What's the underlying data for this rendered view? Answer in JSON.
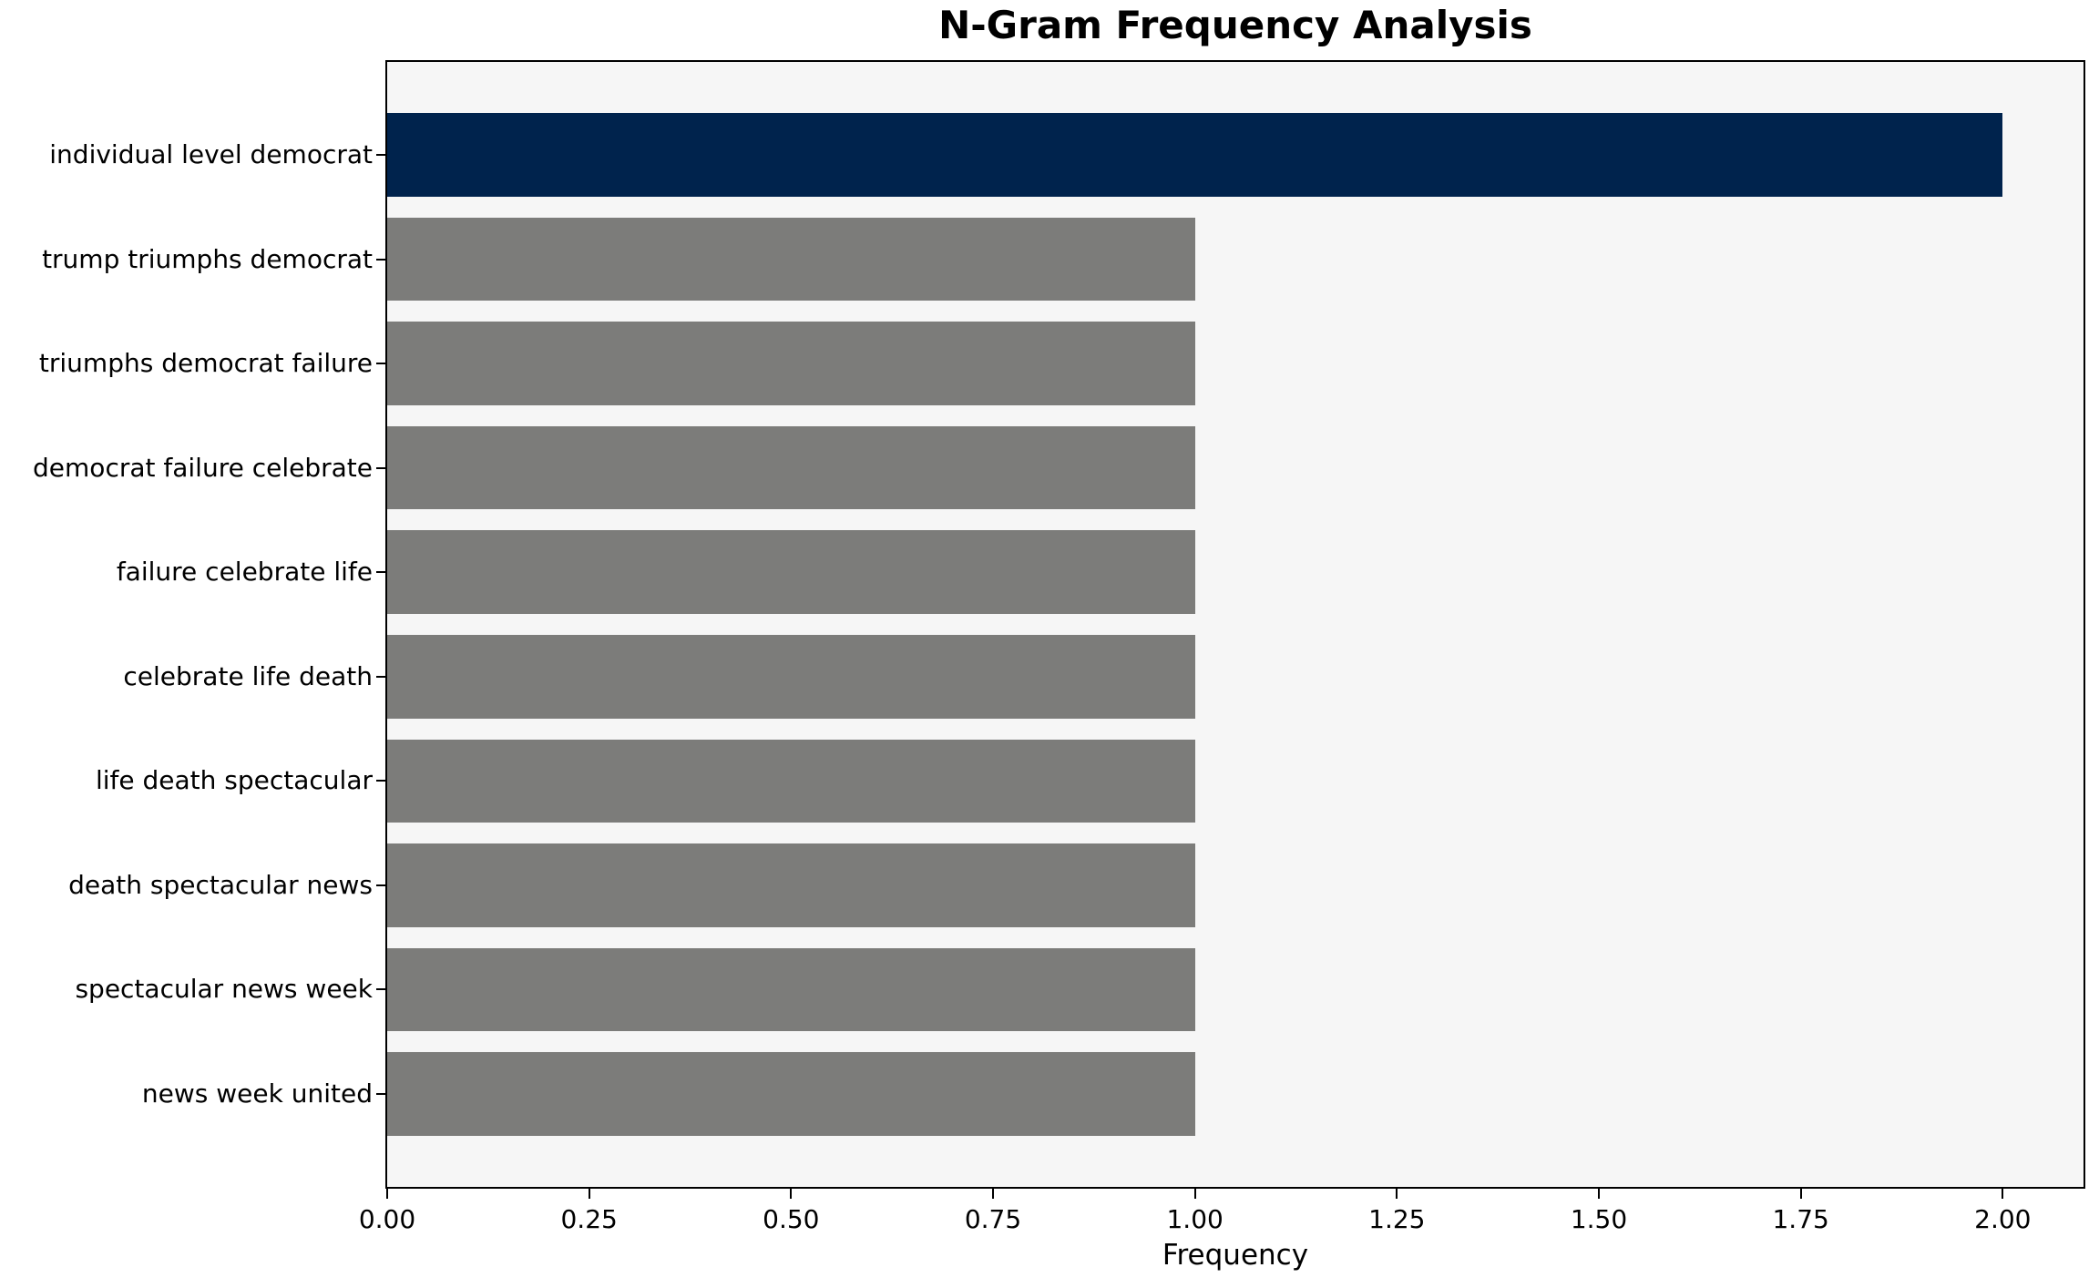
{
  "chart_data": {
    "type": "bar",
    "orientation": "horizontal",
    "title": "N-Gram Frequency Analysis",
    "xlabel": "Frequency",
    "ylabel": "",
    "categories": [
      "individual level democrat",
      "trump triumphs democrat",
      "triumphs democrat failure",
      "democrat failure celebrate",
      "failure celebrate life",
      "celebrate life death",
      "life death spectacular",
      "death spectacular news",
      "spectacular news week",
      "news week united"
    ],
    "values": [
      2,
      1,
      1,
      1,
      1,
      1,
      1,
      1,
      1,
      1
    ],
    "bar_colors": [
      "#00234d",
      "#7c7c7a",
      "#7c7c7a",
      "#7c7c7a",
      "#7c7c7a",
      "#7c7c7a",
      "#7c7c7a",
      "#7c7c7a",
      "#7c7c7a",
      "#7c7c7a"
    ],
    "xlim": [
      0,
      2.1
    ],
    "xtick_values": [
      0,
      0.25,
      0.5,
      0.75,
      1.0,
      1.25,
      1.5,
      1.75,
      2.0
    ],
    "xtick_labels": [
      "0.00",
      "0.25",
      "0.50",
      "0.75",
      "1.00",
      "1.25",
      "1.50",
      "1.75",
      "2.00"
    ],
    "grid": false,
    "legend": false,
    "colors": {
      "highlight_bar": "#00234d",
      "default_bar": "#7c7c7a",
      "plot_background": "#f6f6f6",
      "figure_background": "#ffffff",
      "spine": "#000000",
      "text": "#000000"
    }
  }
}
